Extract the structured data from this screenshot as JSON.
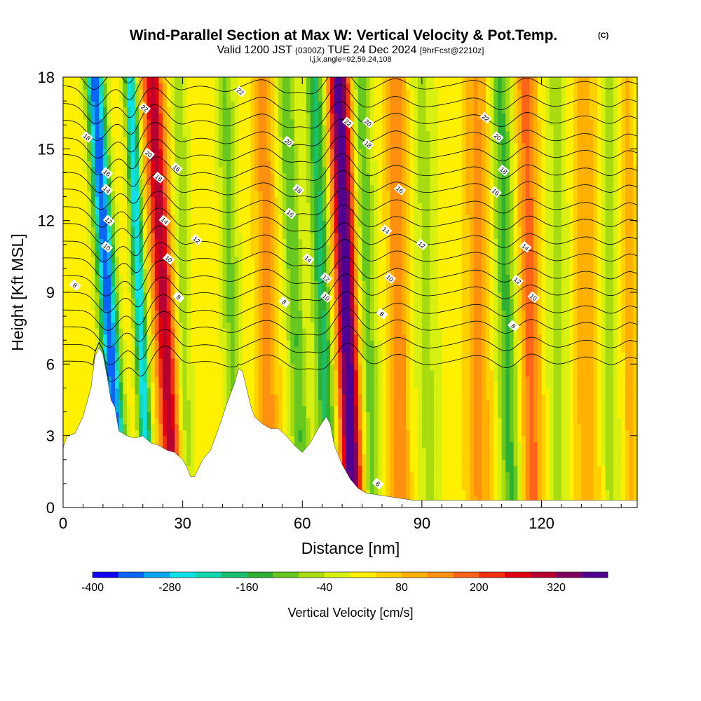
{
  "chart_data": {
    "type": "heatmap",
    "title": "Wind-Parallel Section at Max W: Vertical Velocity & Pot.Temp.",
    "title_mark": "(C)",
    "subtitle_valid": "Valid 1200 JST",
    "subtitle_utc": "(0300Z)",
    "subtitle_date": "TUE 24 Dec 2024",
    "subtitle_fcst": "[9hrFcst@2210z]",
    "subtitle_indices": "i,j,k,angle=92,59,24,108",
    "xlabel": "Distance [nm]",
    "ylabel": "Height [Kft MSL]",
    "xlim": [
      0,
      144
    ],
    "ylim": [
      0,
      18
    ],
    "xticks": [
      "0",
      "30",
      "60",
      "90",
      "120"
    ],
    "xtick_values": [
      0,
      30,
      60,
      90,
      120
    ],
    "yticks": [
      "0",
      "3",
      "6",
      "9",
      "12",
      "15",
      "18"
    ],
    "ytick_values": [
      0,
      3,
      6,
      9,
      12,
      15,
      18
    ],
    "colorbar": {
      "title": "Vertical Velocity [cm/s]",
      "min": -400,
      "max": 400,
      "step": 40,
      "tick_labels": [
        "-400",
        "-280",
        "-160",
        "-40",
        "80",
        "200",
        "320"
      ],
      "tick_values": [
        -400,
        -280,
        -160,
        -40,
        80,
        200,
        320
      ],
      "colors": [
        "#1400f0",
        "#0a64f5",
        "#0aa8f0",
        "#10e0e8",
        "#10d8b0",
        "#18c070",
        "#30b030",
        "#68c820",
        "#a8dc10",
        "#d8f010",
        "#fff000",
        "#ffd000",
        "#ffb000",
        "#ff9010",
        "#ff6418",
        "#f03010",
        "#e00010",
        "#b80030",
        "#800060",
        "#500090"
      ]
    },
    "terrain": [
      [
        0,
        2.5
      ],
      [
        1,
        3
      ],
      [
        3,
        3.1
      ],
      [
        5,
        3.8
      ],
      [
        7,
        5
      ],
      [
        8,
        6.3
      ],
      [
        9,
        6.7
      ],
      [
        10,
        6.4
      ],
      [
        11,
        5.5
      ],
      [
        12,
        4.5
      ],
      [
        13,
        4.2
      ],
      [
        14,
        3.2
      ],
      [
        16,
        3
      ],
      [
        18,
        2.9
      ],
      [
        20,
        3
      ],
      [
        22,
        2.7
      ],
      [
        24,
        2.6
      ],
      [
        26,
        2.4
      ],
      [
        28,
        2.3
      ],
      [
        30,
        2
      ],
      [
        31,
        1.7
      ],
      [
        32,
        1.3
      ],
      [
        33,
        1.3
      ],
      [
        35,
        2
      ],
      [
        37,
        2.4
      ],
      [
        39,
        3.3
      ],
      [
        41,
        4.3
      ],
      [
        43,
        5.2
      ],
      [
        44,
        5.8
      ],
      [
        45,
        5.7
      ],
      [
        46,
        5
      ],
      [
        47,
        4.3
      ],
      [
        48,
        3.8
      ],
      [
        50,
        3.5
      ],
      [
        52,
        3.3
      ],
      [
        54,
        3.3
      ],
      [
        56,
        3
      ],
      [
        58,
        2.6
      ],
      [
        60,
        2.3
      ],
      [
        62,
        2.7
      ],
      [
        64,
        3.3
      ],
      [
        66,
        3.8
      ],
      [
        67,
        3.5
      ],
      [
        68,
        2.6
      ],
      [
        70,
        1.8
      ],
      [
        72,
        1.2
      ],
      [
        74,
        0.8
      ],
      [
        76,
        0.6
      ],
      [
        80,
        0.5
      ],
      [
        84,
        0.4
      ],
      [
        88,
        0.3
      ],
      [
        144,
        0.3
      ]
    ],
    "w_bands": [
      {
        "x": 11,
        "tilt": -0.35,
        "width": 2.2,
        "w": -380
      },
      {
        "x": 19,
        "tilt": -0.25,
        "width": 1.5,
        "w": -300
      },
      {
        "x": 25,
        "tilt": -0.3,
        "width": 2.5,
        "w": 290
      },
      {
        "x": 30,
        "tilt": -0.1,
        "width": 1.8,
        "w": -90
      },
      {
        "x": 42,
        "tilt": -0.15,
        "width": 2.2,
        "w": -110
      },
      {
        "x": 51,
        "tilt": -0.1,
        "width": 2.5,
        "w": 120
      },
      {
        "x": 58,
        "tilt": -0.25,
        "width": 2.2,
        "w": -140
      },
      {
        "x": 65,
        "tilt": -0.2,
        "width": 2.5,
        "w": -190
      },
      {
        "x": 71,
        "tilt": -0.2,
        "width": 2.8,
        "w": 390
      },
      {
        "x": 76,
        "tilt": -0.15,
        "width": 2.5,
        "w": -130
      },
      {
        "x": 84,
        "tilt": -0.05,
        "width": 2.5,
        "w": 140
      },
      {
        "x": 91,
        "tilt": -0.1,
        "width": 3,
        "w": -70
      },
      {
        "x": 104,
        "tilt": -0.05,
        "width": 3,
        "w": 110
      },
      {
        "x": 111,
        "tilt": -0.15,
        "width": 2.5,
        "w": -150
      },
      {
        "x": 117,
        "tilt": -0.1,
        "width": 2.5,
        "w": 160
      },
      {
        "x": 124,
        "tilt": -0.05,
        "width": 3,
        "w": -70
      },
      {
        "x": 131,
        "tilt": -0.05,
        "width": 3,
        "w": 90
      },
      {
        "x": 137,
        "tilt": -0.05,
        "width": 2,
        "w": -80
      },
      {
        "x": 142,
        "tilt": -0.05,
        "width": 1.5,
        "w": 80
      }
    ],
    "theta_levels": [
      6,
      8,
      10,
      12,
      14,
      16,
      18,
      20,
      22
    ],
    "contour_labels": [
      {
        "text": "18",
        "x": 6,
        "y": 15.5
      },
      {
        "text": "16",
        "x": 11,
        "y": 14
      },
      {
        "text": "14",
        "x": 11,
        "y": 13.3
      },
      {
        "text": "12",
        "x": 11.5,
        "y": 12
      },
      {
        "text": "10",
        "x": 11,
        "y": 10.9
      },
      {
        "text": "8",
        "x": 3,
        "y": 9.3
      },
      {
        "text": "22",
        "x": 20.5,
        "y": 16.7
      },
      {
        "text": "20",
        "x": 21.5,
        "y": 14.8
      },
      {
        "text": "18",
        "x": 24,
        "y": 13.8
      },
      {
        "text": "16",
        "x": 28.5,
        "y": 14.2
      },
      {
        "text": "14",
        "x": 25.5,
        "y": 12
      },
      {
        "text": "10",
        "x": 26.5,
        "y": 10.4
      },
      {
        "text": "12",
        "x": 33.5,
        "y": 11.2
      },
      {
        "text": "8",
        "x": 29,
        "y": 8.8
      },
      {
        "text": "22",
        "x": 44.5,
        "y": 17.4
      },
      {
        "text": "20",
        "x": 56.5,
        "y": 15.3
      },
      {
        "text": "18",
        "x": 59,
        "y": 13.3
      },
      {
        "text": "16",
        "x": 57,
        "y": 12.3
      },
      {
        "text": "14",
        "x": 61.5,
        "y": 10.4
      },
      {
        "text": "12",
        "x": 66,
        "y": 9.6
      },
      {
        "text": "10",
        "x": 66,
        "y": 8.8
      },
      {
        "text": "8",
        "x": 55.5,
        "y": 8.6
      },
      {
        "text": "22",
        "x": 71.5,
        "y": 16.1
      },
      {
        "text": "20",
        "x": 76.5,
        "y": 16.1
      },
      {
        "text": "18",
        "x": 76.5,
        "y": 15.2
      },
      {
        "text": "16",
        "x": 84.5,
        "y": 13.3
      },
      {
        "text": "14",
        "x": 81,
        "y": 11.6
      },
      {
        "text": "12",
        "x": 90,
        "y": 11
      },
      {
        "text": "10",
        "x": 82,
        "y": 9.6
      },
      {
        "text": "8",
        "x": 80,
        "y": 8.1
      },
      {
        "text": "22",
        "x": 106,
        "y": 16.3
      },
      {
        "text": "20",
        "x": 109,
        "y": 15.5
      },
      {
        "text": "18",
        "x": 110.5,
        "y": 14.1
      },
      {
        "text": "16",
        "x": 108.5,
        "y": 13.2
      },
      {
        "text": "14",
        "x": 116,
        "y": 10.9
      },
      {
        "text": "12",
        "x": 114,
        "y": 9.5
      },
      {
        "text": "10",
        "x": 118,
        "y": 8.8
      },
      {
        "text": "8",
        "x": 113,
        "y": 7.6
      },
      {
        "text": "6",
        "x": 79,
        "y": 1
      }
    ]
  }
}
